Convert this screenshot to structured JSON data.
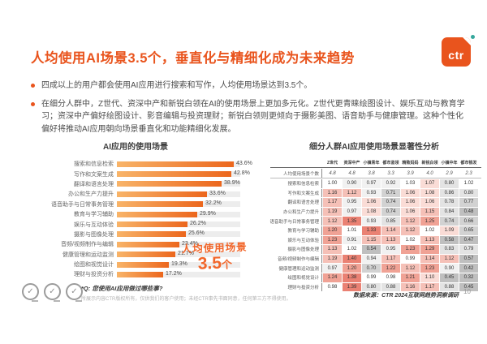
{
  "slide": {
    "title": "人均使用AI场景3.5个，垂直化与精细化成为未来趋势",
    "logo_text": "ctr",
    "page_number": "10",
    "bullets": [
      "四成以上的用户都会使用AI应用进行搜索和写作，人均使用场景达到3.5个。",
      "在细分人群中，Z世代、资深中产和新锐白领在AI的使用场景上更加多元化。Z世代更青睐绘图设计、娱乐互动与教育学习；资深中产偏好绘图设计、影音编辑与投资理财；新锐白领则更倾向于摄影美图、语音助手与健康管理。这种个性化偏好将推动AI应用朝向场景垂直化和功能精细化发展。"
    ],
    "footnote_q": "*Q: 您使用AI应用做过哪些事?",
    "copyright": "所展示内容CTR版权所有，仅供我们的客户使用；未经CTR事先书面同意，任何第三方不得使用。",
    "data_source": "数据来源：CTR 2024互联网趋势洞察调研",
    "seal_glyph": "✓"
  },
  "colors": {
    "accent": "#e9541d",
    "bar_gradient_start": "#f8b469",
    "bar_gradient_end": "#ec661c",
    "annotation": "#f2662a",
    "heat_high": "#ea8173",
    "heat_low": "#bfbfbf",
    "logo_dot": "#35a79c"
  },
  "chart_data": [
    {
      "type": "bar",
      "title": "AI应用的使用场景",
      "orientation": "horizontal",
      "xlim": [
        0,
        46
      ],
      "xlabel": "",
      "ylabel": "",
      "categories": [
        "搜索和信息检索",
        "写作和文案生成",
        "翻译和语言处理",
        "办公和生产力提升",
        "语音助手与日常事务管理",
        "教育与学习辅助",
        "娱乐与互动体验",
        "摄影与图像处理",
        "音频/视频制作与编辑",
        "健康管理和运动监测",
        "绘图和视觉设计",
        "理财与投资分析"
      ],
      "values": [
        43.6,
        42.8,
        38.9,
        33.6,
        32.2,
        29.9,
        26.2,
        25.6,
        23.4,
        21.7,
        19.3,
        17.2
      ],
      "annotation": {
        "line1": "人均使用场景",
        "value": "3.5",
        "unit": "个"
      }
    },
    {
      "type": "heatmap",
      "title": "细分人群AI应用使用场景显著性分析",
      "legend_position": "none",
      "columns": [
        "Z世代",
        "资深中产",
        "小镇青年",
        "都市蓝领",
        "精致妈妈",
        "新锐白领",
        "小镇中年",
        "都市银发"
      ],
      "rows": [
        {
          "label": "人均使用场景个数",
          "style": "index",
          "values": [
            4.8,
            4.8,
            3.8,
            3.3,
            3.9,
            4.0,
            2.9,
            2.3
          ]
        },
        {
          "label": "搜索和信息检索",
          "values": [
            1.0,
            0.9,
            0.97,
            0.92,
            1.03,
            1.07,
            0.8,
            1.02
          ]
        },
        {
          "label": "写作和文案生成",
          "values": [
            1.16,
            1.12,
            0.93,
            0.71,
            1.06,
            1.08,
            0.86,
            0.8
          ]
        },
        {
          "label": "翻译和语言处理",
          "values": [
            1.17,
            0.95,
            1.06,
            0.74,
            1.06,
            1.06,
            0.78,
            0.77
          ]
        },
        {
          "label": "办公和生产力提升",
          "values": [
            1.19,
            0.97,
            1.08,
            0.74,
            1.06,
            1.15,
            0.84,
            0.48
          ]
        },
        {
          "label": "语音助手与日常事务管理",
          "values": [
            1.12,
            1.35,
            0.93,
            0.85,
            1.12,
            1.25,
            0.74,
            0.66
          ]
        },
        {
          "label": "教育与学习辅助",
          "values": [
            1.2,
            1.01,
            1.33,
            1.14,
            1.12,
            1.02,
            1.09,
            0.65
          ]
        },
        {
          "label": "娱乐与互动体验",
          "values": [
            1.23,
            0.91,
            1.15,
            1.13,
            1.02,
            1.13,
            0.58,
            0.47
          ]
        },
        {
          "label": "摄影与图像处理",
          "values": [
            1.13,
            1.02,
            0.54,
            0.95,
            1.23,
            1.29,
            0.83,
            0.79
          ]
        },
        {
          "label": "音频/视频制作与编辑",
          "values": [
            1.19,
            1.4,
            0.94,
            1.17,
            0.99,
            1.14,
            1.12,
            0.57
          ]
        },
        {
          "label": "健康管理和运动监测",
          "values": [
            0.97,
            1.2,
            0.7,
            1.22,
            1.12,
            1.23,
            0.9,
            0.42
          ]
        },
        {
          "label": "绘图和视觉设计",
          "values": [
            1.24,
            1.38,
            0.99,
            0.98,
            1.21,
            1.1,
            0.45,
            0.32
          ]
        },
        {
          "label": "理财与投资分析",
          "values": [
            0.98,
            1.39,
            0.8,
            0.88,
            1.16,
            1.17,
            0.88,
            0.45
          ]
        }
      ]
    }
  ]
}
